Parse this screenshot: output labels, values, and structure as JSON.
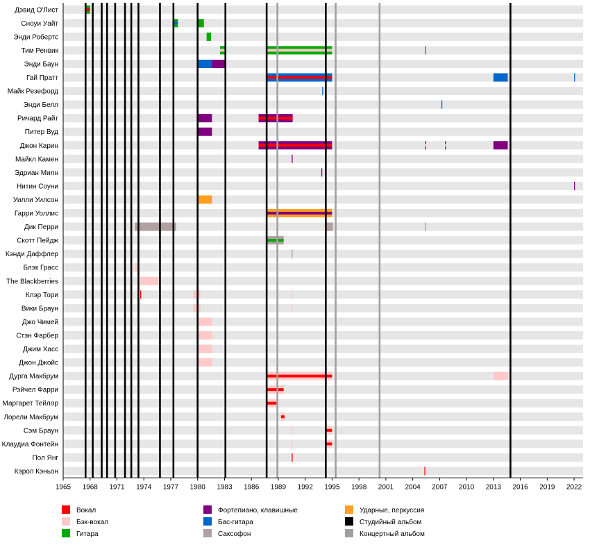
{
  "chart_data": {
    "type": "timeline",
    "title": "",
    "xlim": [
      1965,
      2023
    ],
    "x_ticks": [
      1965,
      1968,
      1971,
      1974,
      1977,
      1980,
      1983,
      1986,
      1989,
      1992,
      1995,
      1998,
      2001,
      2004,
      2007,
      2010,
      2013,
      2016,
      2019,
      2022
    ],
    "grid": true,
    "legend_position": "bottom",
    "colors": {
      "vocals": "#ff0000",
      "backing": "#ffc9c9",
      "guitar": "#00aa00",
      "keys": "#800080",
      "bass": "#0066cc",
      "sax": "#b0a0a0",
      "drums": "#ffa020",
      "studio": "#000000",
      "live": "#a0a0a0"
    },
    "legend": [
      {
        "role": "vocals",
        "label": "Вокал"
      },
      {
        "role": "backing",
        "label": "Бэк-вокал"
      },
      {
        "role": "guitar",
        "label": "Гитара"
      },
      {
        "role": "keys",
        "label": "Фортепиано, клавишные"
      },
      {
        "role": "bass",
        "label": "Бас-гитара"
      },
      {
        "role": "sax",
        "label": "Саксофон"
      },
      {
        "role": "drums",
        "label": "Ударные, перкуссия"
      },
      {
        "role": "studio",
        "label": "Студийный альбом"
      },
      {
        "role": "live",
        "label": "Концертный альбом"
      }
    ],
    "studio_albums": [
      1967.5,
      1968.3,
      1969.3,
      1969.9,
      1970.8,
      1971.9,
      1972.6,
      1973.4,
      1975.8,
      1977.3,
      1980.0,
      1983.1,
      1987.7,
      1994.3,
      2014.9
    ],
    "live_albums": [
      1988.9,
      1995.4,
      2000.3
    ],
    "members": [
      {
        "name": "Дэвид О'Лист",
        "bars": [
          {
            "role": "guitar",
            "start": 1967.5,
            "end": 1968.0
          },
          {
            "role": "vocals",
            "start": 1967.5,
            "end": 1968.0
          }
        ]
      },
      {
        "name": "Сноуи Уайт",
        "bars": [
          {
            "role": "guitar",
            "start": 1977.3,
            "end": 1977.8
          },
          {
            "role": "bass",
            "start": 1977.3,
            "end": 1977.8
          },
          {
            "role": "guitar",
            "start": 1980.0,
            "end": 1980.7
          }
        ]
      },
      {
        "name": "Энди Робертс",
        "bars": [
          {
            "role": "guitar",
            "start": 1981.0,
            "end": 1981.5
          }
        ]
      },
      {
        "name": "Тим Ренвик",
        "bars": [
          {
            "role": "guitar",
            "start": 1982.5,
            "end": 1983.1
          },
          {
            "role": "backing",
            "start": 1982.5,
            "end": 1983.1
          },
          {
            "role": "guitar",
            "start": 1987.7,
            "end": 1995.0
          },
          {
            "role": "backing",
            "start": 1987.7,
            "end": 1995.0
          },
          {
            "role": "guitar",
            "start": 2005.4,
            "end": 2005.5
          }
        ]
      },
      {
        "name": "Энди Баун",
        "bars": [
          {
            "role": "bass",
            "start": 1980.0,
            "end": 1981.6
          },
          {
            "role": "keys",
            "start": 1981.6,
            "end": 1983.1
          }
        ]
      },
      {
        "name": "Гай Пратт",
        "bars": [
          {
            "role": "bass",
            "start": 1987.7,
            "end": 1995.0
          },
          {
            "role": "vocals",
            "start": 1987.7,
            "end": 1995.0
          },
          {
            "role": "bass",
            "start": 2013.0,
            "end": 2014.6
          },
          {
            "role": "bass",
            "start": 2022.0,
            "end": 2022.1
          }
        ]
      },
      {
        "name": "Майк Резефорд",
        "bars": [
          {
            "role": "bass",
            "start": 1993.9,
            "end": 1994.0
          }
        ]
      },
      {
        "name": "Энди Белл",
        "bars": [
          {
            "role": "bass",
            "start": 2007.2,
            "end": 2007.3
          }
        ]
      },
      {
        "name": "Ричард Райт",
        "bars": [
          {
            "role": "keys",
            "start": 1980.0,
            "end": 1981.6
          },
          {
            "role": "keys",
            "start": 1986.8,
            "end": 1990.6
          },
          {
            "role": "vocals",
            "start": 1986.8,
            "end": 1990.6
          }
        ]
      },
      {
        "name": "Питер Вуд",
        "bars": [
          {
            "role": "keys",
            "start": 1980.0,
            "end": 1981.6
          }
        ]
      },
      {
        "name": "Джон Карин",
        "bars": [
          {
            "role": "keys",
            "start": 1986.8,
            "end": 1995.0
          },
          {
            "role": "vocals",
            "start": 1986.8,
            "end": 1995.0
          },
          {
            "role": "keys",
            "start": 2005.4,
            "end": 2005.5
          },
          {
            "role": "backing",
            "start": 2005.4,
            "end": 2005.5
          },
          {
            "role": "keys",
            "start": 2007.6,
            "end": 2007.7
          },
          {
            "role": "backing",
            "start": 2007.6,
            "end": 2007.7
          },
          {
            "role": "keys",
            "start": 2013.0,
            "end": 2014.6
          }
        ]
      },
      {
        "name": "Майкл Камен",
        "bars": [
          {
            "role": "keys",
            "start": 1990.5,
            "end": 1990.6
          }
        ]
      },
      {
        "name": "Эдриан Милн",
        "bars": [
          {
            "role": "keys",
            "start": 1993.8,
            "end": 1993.9
          },
          {
            "role": "vocals",
            "start": 1993.8,
            "end": 1993.9
          }
        ]
      },
      {
        "name": "Нитин Соуни",
        "bars": [
          {
            "role": "keys",
            "start": 2022.0,
            "end": 2022.1
          }
        ]
      },
      {
        "name": "Уилли Уилсон",
        "bars": [
          {
            "role": "drums",
            "start": 1980.0,
            "end": 1981.6
          }
        ]
      },
      {
        "name": "Гарри Уоллис",
        "bars": [
          {
            "role": "drums",
            "start": 1987.7,
            "end": 1995.0
          },
          {
            "role": "keys",
            "start": 1987.7,
            "end": 1995.0
          }
        ]
      },
      {
        "name": "Дик Перри",
        "bars": [
          {
            "role": "sax",
            "start": 1973.0,
            "end": 1977.6
          },
          {
            "role": "sax",
            "start": 1994.3,
            "end": 1995.1
          },
          {
            "role": "sax",
            "start": 2005.4,
            "end": 2005.5
          }
        ]
      },
      {
        "name": "Скотт Пейдж",
        "bars": [
          {
            "role": "sax",
            "start": 1987.7,
            "end": 1989.6
          },
          {
            "role": "guitar",
            "start": 1987.7,
            "end": 1989.6
          }
        ]
      },
      {
        "name": "Кэнди Даффлер",
        "bars": [
          {
            "role": "sax",
            "start": 1990.5,
            "end": 1990.6
          }
        ]
      },
      {
        "name": "Блэк Грасс",
        "bars": [
          {
            "role": "backing",
            "start": 1973.0,
            "end": 1973.4
          }
        ]
      },
      {
        "name": "The Blackberries",
        "bars": [
          {
            "role": "backing",
            "start": 1973.6,
            "end": 1975.6
          }
        ]
      },
      {
        "name": "Клэр Тори",
        "bars": [
          {
            "role": "vocals",
            "start": 1973.6,
            "end": 1973.7
          },
          {
            "role": "backing",
            "start": 1979.5,
            "end": 1980.3
          },
          {
            "role": "backing",
            "start": 1990.5,
            "end": 1990.6
          }
        ]
      },
      {
        "name": "Вики Браун",
        "bars": [
          {
            "role": "backing",
            "start": 1979.5,
            "end": 1980.3
          },
          {
            "role": "backing",
            "start": 1990.5,
            "end": 1990.6
          }
        ]
      },
      {
        "name": "Джо Чимей",
        "bars": [
          {
            "role": "backing",
            "start": 1980.0,
            "end": 1981.6
          }
        ]
      },
      {
        "name": "Стэн Фарбер",
        "bars": [
          {
            "role": "backing",
            "start": 1980.0,
            "end": 1981.6
          }
        ]
      },
      {
        "name": "Джим Хасс",
        "bars": [
          {
            "role": "backing",
            "start": 1980.0,
            "end": 1981.6
          }
        ]
      },
      {
        "name": "Джон Джойс",
        "bars": [
          {
            "role": "backing",
            "start": 1980.0,
            "end": 1981.6
          }
        ]
      },
      {
        "name": "Дурга Макбрум",
        "bars": [
          {
            "role": "backing",
            "start": 1987.7,
            "end": 1995.0
          },
          {
            "role": "vocals",
            "start": 1987.7,
            "end": 1995.0
          },
          {
            "role": "backing",
            "start": 2013.0,
            "end": 2014.6
          }
        ]
      },
      {
        "name": "Рэйчел Фарри",
        "bars": [
          {
            "role": "backing",
            "start": 1987.7,
            "end": 1989.6
          },
          {
            "role": "vocals",
            "start": 1987.7,
            "end": 1989.6
          }
        ]
      },
      {
        "name": "Маргарет Тейлор",
        "bars": [
          {
            "role": "backing",
            "start": 1987.7,
            "end": 1988.8
          },
          {
            "role": "vocals",
            "start": 1987.7,
            "end": 1988.8
          }
        ]
      },
      {
        "name": "Лорели Макбрум",
        "bars": [
          {
            "role": "backing",
            "start": 1989.3,
            "end": 1989.7
          },
          {
            "role": "vocals",
            "start": 1989.3,
            "end": 1989.7
          }
        ]
      },
      {
        "name": "Сэм Браун",
        "bars": [
          {
            "role": "backing",
            "start": 1990.5,
            "end": 1990.6
          },
          {
            "role": "backing",
            "start": 1994.3,
            "end": 1995.0
          },
          {
            "role": "vocals",
            "start": 1994.3,
            "end": 1995.0
          }
        ]
      },
      {
        "name": "Клаудиа Фонтейн",
        "bars": [
          {
            "role": "backing",
            "start": 1990.5,
            "end": 1990.6
          },
          {
            "role": "backing",
            "start": 1994.3,
            "end": 1995.0
          },
          {
            "role": "vocals",
            "start": 1994.3,
            "end": 1995.0
          }
        ]
      },
      {
        "name": "Пол Янг",
        "bars": [
          {
            "role": "vocals",
            "start": 1990.5,
            "end": 1990.6
          }
        ]
      },
      {
        "name": "Кэрол Кэньон",
        "bars": [
          {
            "role": "vocals",
            "start": 2005.3,
            "end": 2005.4
          }
        ]
      }
    ]
  }
}
